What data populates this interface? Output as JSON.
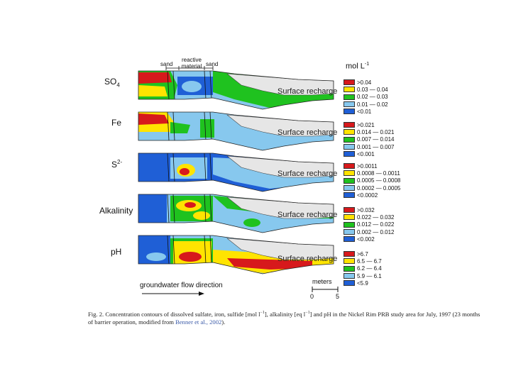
{
  "unit_label": "mol L",
  "unit_exp": "-1",
  "top_labels": {
    "sand_left": "sand",
    "reactive_line1": "reactive",
    "reactive_line2": "material",
    "sand_right": "sand"
  },
  "panels": [
    {
      "label": "SO",
      "label_sub": "4",
      "label_sup": "",
      "recharge": "Surface recharge",
      "legend": [
        {
          "text": ">0.04",
          "color": "#d7191c"
        },
        {
          "text": "0.03 — 0.04",
          "color": "#ffe400"
        },
        {
          "text": "0.02 — 0.03",
          "color": "#1fc21f"
        },
        {
          "text": "0.01 — 0.02",
          "color": "#87c8ee"
        },
        {
          "text": "<0.01",
          "color": "#1f5fd6"
        }
      ]
    },
    {
      "label": "Fe",
      "label_sub": "",
      "label_sup": "",
      "recharge": "Surface recharge",
      "legend": [
        {
          "text": ">0.021",
          "color": "#d7191c"
        },
        {
          "text": "0.014 — 0.021",
          "color": "#ffe400"
        },
        {
          "text": "0.007 — 0.014",
          "color": "#1fc21f"
        },
        {
          "text": "0.001 — 0.007",
          "color": "#87c8ee"
        },
        {
          "text": "<0.001",
          "color": "#1f5fd6"
        }
      ]
    },
    {
      "label": "S",
      "label_sub": "",
      "label_sup": "2-",
      "recharge": "Surface recharge",
      "legend": [
        {
          "text": ">0.0011",
          "color": "#d7191c"
        },
        {
          "text": "0.0008 — 0.0011",
          "color": "#ffe400"
        },
        {
          "text": "0.0005 — 0.0008",
          "color": "#1fc21f"
        },
        {
          "text": "0.0002 — 0.0005",
          "color": "#87c8ee"
        },
        {
          "text": "<0.0002",
          "color": "#1f5fd6"
        }
      ]
    },
    {
      "label": "Alkalinity",
      "label_sub": "",
      "label_sup": "",
      "recharge": "Surface recharge",
      "legend": [
        {
          "text": ">0.032",
          "color": "#d7191c"
        },
        {
          "text": "0.022 — 0.032",
          "color": "#ffe400"
        },
        {
          "text": "0.012 — 0.022",
          "color": "#1fc21f"
        },
        {
          "text": "0.002 — 0.012",
          "color": "#87c8ee"
        },
        {
          "text": "<0.002",
          "color": "#1f5fd6"
        }
      ]
    },
    {
      "label": "pH",
      "label_sub": "",
      "label_sup": "",
      "recharge": "Surface recharge",
      "legend": [
        {
          "text": ">6.7",
          "color": "#d7191c"
        },
        {
          "text": "6.5 — 6.7",
          "color": "#ffe400"
        },
        {
          "text": "6.2 — 6.4",
          "color": "#1fc21f"
        },
        {
          "text": "5.9 — 6.1",
          "color": "#87c8ee"
        },
        {
          "text": "<5.9",
          "color": "#1f5fd6"
        }
      ]
    }
  ],
  "flow_label": "groundwater flow direction",
  "scale": {
    "title": "meters",
    "start": "0",
    "end": "5"
  },
  "caption": {
    "text1": "Fig. 2. Concentration contours of dissolved sulfate, iron, sulfide [mol l",
    "sup1": "−1",
    "text2": "], alkalinity [eq l",
    "sup2": "−1",
    "text3": "] and pH in the Nickel Rim PRB study area for July, 1997 (23 months of barrier operation, modified from ",
    "link": "Benner et al., 2002",
    "text4": ")."
  }
}
